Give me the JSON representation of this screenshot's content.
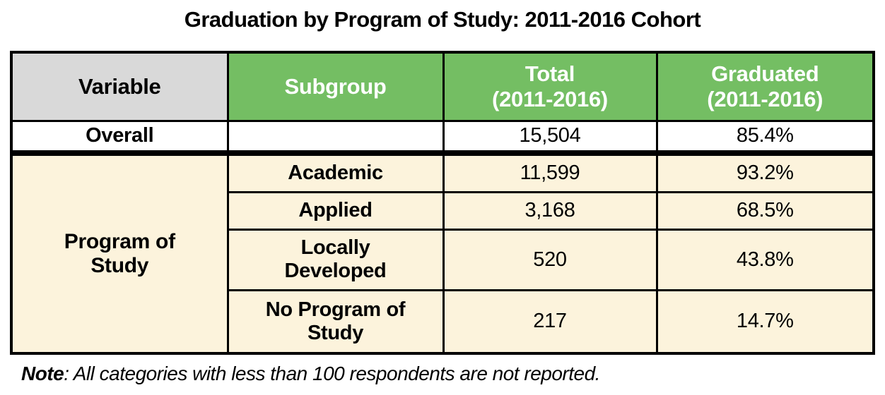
{
  "title": "Graduation by Program of Study: 2011-2016 Cohort",
  "table": {
    "headers": [
      {
        "label": "Variable"
      },
      {
        "label": "Subgroup"
      },
      {
        "label": "Total\n(2011-2016)"
      },
      {
        "label": "Graduated\n(2011-2016)"
      }
    ],
    "overall_row": {
      "variable": "Overall",
      "subgroup": "",
      "total": "15,504",
      "graduated": "85.4%"
    },
    "group_label": "Program of\nStudy",
    "group_rows": [
      {
        "subgroup": "Academic",
        "total": "11,599",
        "graduated": "93.2%"
      },
      {
        "subgroup": "Applied",
        "total": "3,168",
        "graduated": "68.5%"
      },
      {
        "subgroup": "Locally\nDeveloped",
        "total": "520",
        "graduated": "43.8%"
      },
      {
        "subgroup": "No Program of\nStudy",
        "total": "217",
        "graduated": "14.7%"
      }
    ]
  },
  "note": {
    "label": "Note",
    "text": ": All categories with less than 100 respondents are not reported."
  },
  "colors": {
    "header_green": "#74be63",
    "header_gray": "#d9d9d9",
    "body_cream": "#fcf3dc",
    "border": "#000000",
    "header_text_green_cells": "#ffffff"
  },
  "chart_data": {
    "type": "table",
    "title": "Graduation by Program of Study: 2011-2016 Cohort",
    "columns": [
      "Variable",
      "Subgroup",
      "Total (2011-2016)",
      "Graduated (2011-2016)"
    ],
    "rows": [
      [
        "Overall",
        "",
        "15,504",
        "85.4%"
      ],
      [
        "Program of Study",
        "Academic",
        "11,599",
        "93.2%"
      ],
      [
        "Program of Study",
        "Applied",
        "3,168",
        "68.5%"
      ],
      [
        "Program of Study",
        "Locally Developed",
        "520",
        "43.8%"
      ],
      [
        "Program of Study",
        "No Program of Study",
        "217",
        "14.7%"
      ]
    ],
    "totals_cohort": [
      15504,
      11599,
      3168,
      520,
      217
    ],
    "graduation_rates_pct": [
      85.4,
      93.2,
      68.5,
      43.8,
      14.7
    ],
    "note": "Note: All categories with less than 100 respondents are not reported."
  }
}
